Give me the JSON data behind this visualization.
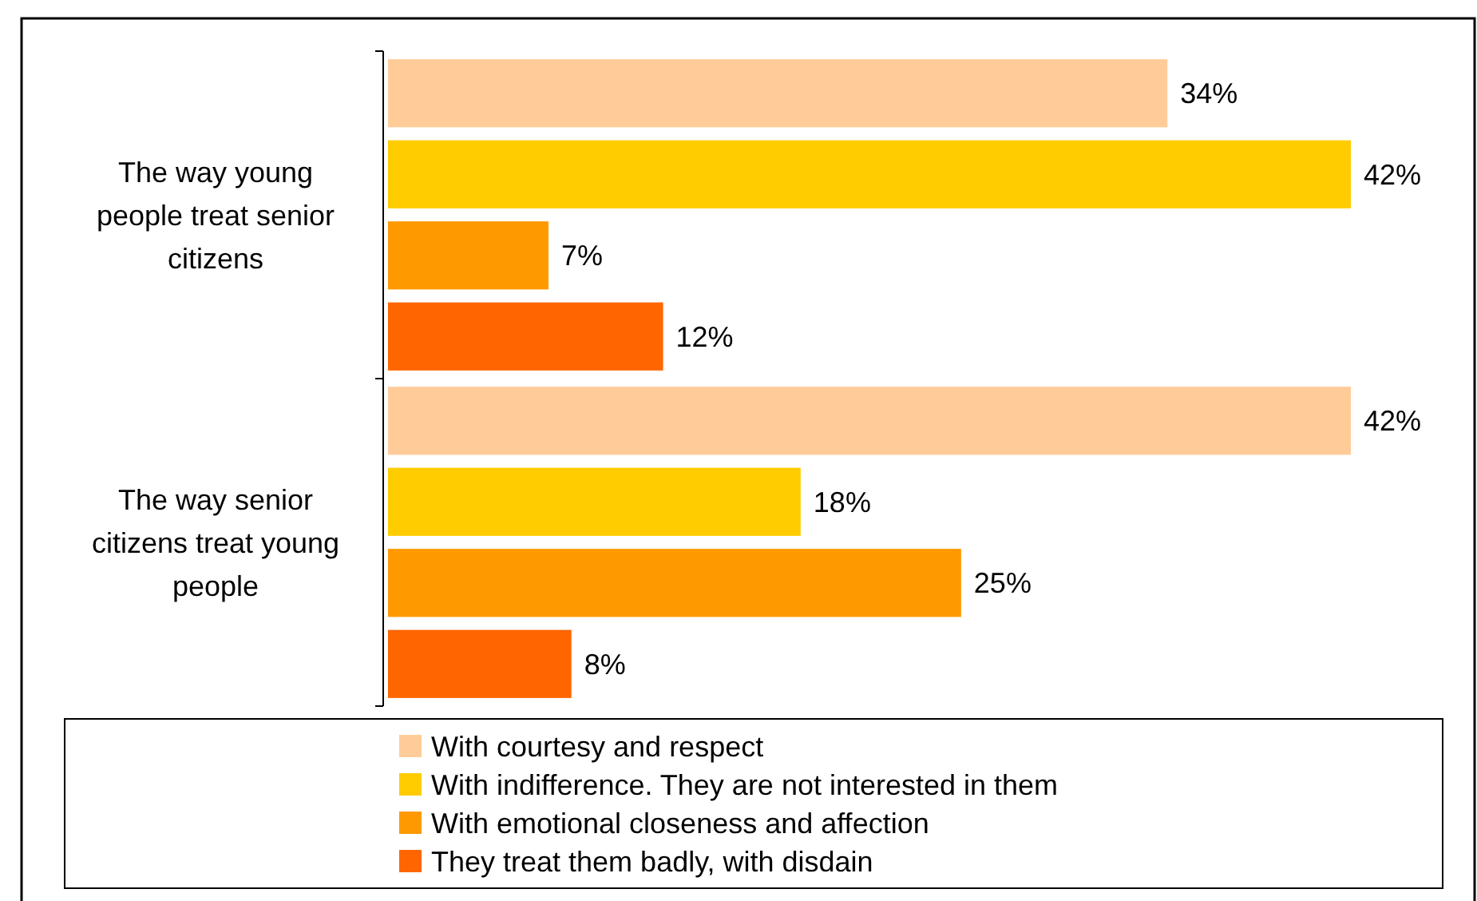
{
  "chart_data": {
    "type": "bar",
    "orientation": "horizontal",
    "categories": [
      "The way young people treat senior citizens",
      "The way senior citizens treat young people"
    ],
    "series": [
      {
        "name": "With courtesy and respect",
        "color": "#ffcc99",
        "values": [
          34,
          42
        ],
        "value_labels": [
          "34%",
          "42%"
        ]
      },
      {
        "name": "With indifference. They are not interested in them",
        "color": "#ffcc00",
        "values": [
          42,
          18
        ],
        "value_labels": [
          "42%",
          "18%"
        ]
      },
      {
        "name": "With emotional closeness and affection",
        "color": "#ff9900",
        "values": [
          7,
          25
        ],
        "value_labels": [
          "7%",
          "25%"
        ]
      },
      {
        "name": "They treat them badly, with disdain",
        "color": "#ff6600",
        "values": [
          12,
          8
        ],
        "value_labels": [
          "12%",
          "8%"
        ]
      }
    ],
    "legend": "bottom"
  }
}
